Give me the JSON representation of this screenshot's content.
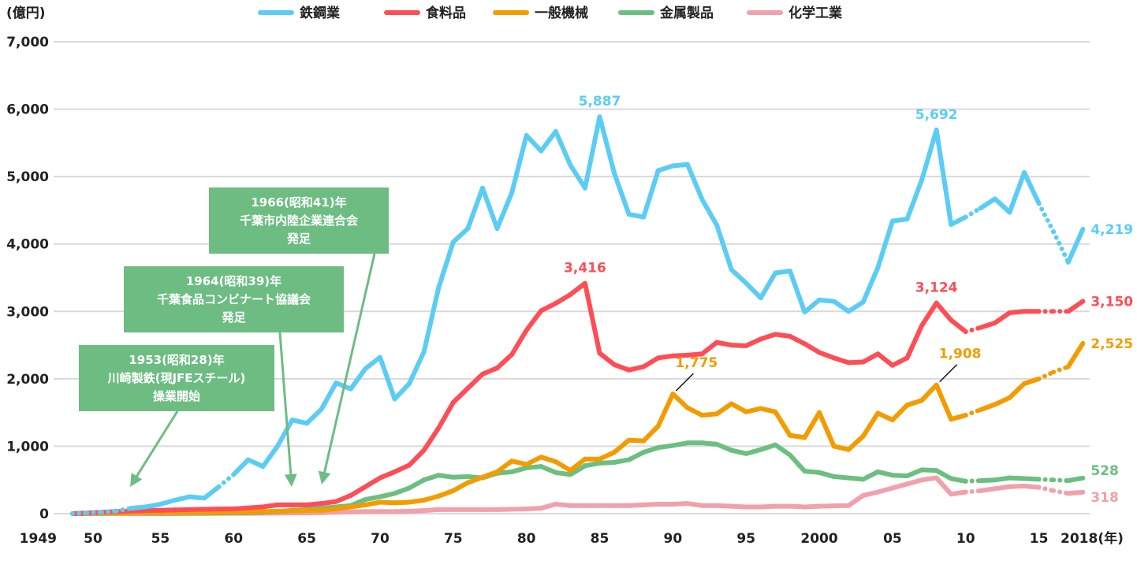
{
  "chart_data": {
    "type": "line",
    "ylabel": "(億円)",
    "xlabel_suffix": "(年)",
    "ylim": [
      0,
      7000
    ],
    "yticks": [
      "0",
      "1,000",
      "2,000",
      "3,000",
      "4,000",
      "5,000",
      "6,000",
      "7,000"
    ],
    "ytick_values": [
      0,
      1000,
      2000,
      3000,
      4000,
      5000,
      6000,
      7000
    ],
    "xlim": [
      1949,
      2018
    ],
    "xticks": [
      {
        "year": 1949,
        "label": "1949"
      },
      {
        "year": 1950,
        "label": "50"
      },
      {
        "year": 1955,
        "label": "55"
      },
      {
        "year": 1960,
        "label": "60"
      },
      {
        "year": 1965,
        "label": "65"
      },
      {
        "year": 1970,
        "label": "70"
      },
      {
        "year": 1975,
        "label": "75"
      },
      {
        "year": 1980,
        "label": "80"
      },
      {
        "year": 1985,
        "label": "85"
      },
      {
        "year": 1990,
        "label": "90"
      },
      {
        "year": 1995,
        "label": "95"
      },
      {
        "year": 2000,
        "label": "2000"
      },
      {
        "year": 2005,
        "label": "05"
      },
      {
        "year": 2010,
        "label": "10"
      },
      {
        "year": 2015,
        "label": "15"
      },
      {
        "year": 2018,
        "label": "2018(年)"
      }
    ],
    "grid": true,
    "legend_position": "top",
    "start_year": 1949,
    "series": [
      {
        "name": "鉄鋼業",
        "color": "#5bcdf5",
        "dotted_from": [
          1949,
          1950,
          1951,
          1952,
          1959,
          2010,
          2015,
          2016
        ],
        "values": [
          0,
          10,
          20,
          40,
          80,
          100,
          140,
          200,
          250,
          230,
          400,
          580,
          800,
          700,
          1000,
          1390,
          1340,
          1550,
          1940,
          1850,
          2150,
          2320,
          1700,
          1930,
          2400,
          3350,
          4030,
          4230,
          4830,
          4230,
          4760,
          5610,
          5380,
          5670,
          5170,
          4830,
          5887,
          5050,
          4440,
          4400,
          5090,
          5160,
          5180,
          4660,
          4280,
          3620,
          3420,
          3200,
          3570,
          3600,
          2990,
          3170,
          3150,
          3000,
          3140,
          3650,
          4340,
          4370,
          4950,
          5692,
          4290,
          4400,
          4530,
          4670,
          4470,
          5060,
          4600,
          4180,
          3730,
          4219
        ]
      },
      {
        "name": "食料品",
        "color": "#ff4d55",
        "dotted_from": [
          2010,
          2015,
          2016
        ],
        "values": [
          0,
          10,
          20,
          30,
          40,
          45,
          50,
          55,
          60,
          65,
          68,
          70,
          85,
          100,
          130,
          130,
          130,
          150,
          180,
          270,
          400,
          530,
          620,
          720,
          940,
          1270,
          1650,
          1860,
          2070,
          2160,
          2360,
          2720,
          3010,
          3120,
          3250,
          3416,
          2380,
          2210,
          2130,
          2180,
          2310,
          2340,
          2350,
          2370,
          2540,
          2500,
          2490,
          2590,
          2660,
          2630,
          2520,
          2390,
          2310,
          2240,
          2250,
          2370,
          2200,
          2310,
          2790,
          3124,
          2870,
          2700,
          2760,
          2830,
          2980,
          3000,
          3000,
          3000,
          3000,
          3150
        ]
      },
      {
        "name": "一般機械",
        "color": "#f39c00",
        "dotted_from": [
          2010,
          2015,
          2016
        ],
        "values": [
          0,
          2,
          4,
          6,
          8,
          10,
          10,
          12,
          14,
          16,
          18,
          20,
          25,
          30,
          35,
          40,
          45,
          50,
          70,
          100,
          130,
          170,
          160,
          170,
          200,
          260,
          340,
          460,
          540,
          620,
          780,
          730,
          840,
          770,
          640,
          810,
          810,
          910,
          1090,
          1080,
          1300,
          1775,
          1570,
          1460,
          1480,
          1630,
          1510,
          1560,
          1510,
          1160,
          1130,
          1500,
          1000,
          950,
          1150,
          1490,
          1390,
          1610,
          1680,
          1908,
          1400,
          1460,
          1540,
          1620,
          1720,
          1930,
          2000,
          2100,
          2180,
          2525
        ]
      },
      {
        "name": "金属製品",
        "color": "#6cbf80",
        "dotted_from": [
          1950,
          1951,
          1952,
          1953,
          2010,
          2015,
          2016
        ],
        "values": [
          0,
          2,
          3,
          4,
          5,
          5,
          5,
          5,
          6,
          7,
          8,
          10,
          15,
          20,
          30,
          50,
          60,
          80,
          100,
          120,
          210,
          250,
          300,
          380,
          500,
          570,
          540,
          550,
          530,
          600,
          620,
          680,
          700,
          610,
          580,
          710,
          750,
          760,
          800,
          910,
          980,
          1010,
          1050,
          1050,
          1030,
          940,
          890,
          950,
          1020,
          870,
          630,
          610,
          550,
          530,
          510,
          620,
          570,
          560,
          650,
          640,
          520,
          480,
          490,
          500,
          530,
          520,
          510,
          500,
          490,
          528
        ]
      },
      {
        "name": "化学工業",
        "color": "#f2a0ab",
        "dotted_from": [
          2010,
          2015,
          2016
        ],
        "values": [
          0,
          1,
          1,
          1,
          2,
          2,
          2,
          2,
          3,
          3,
          4,
          5,
          5,
          6,
          8,
          10,
          10,
          15,
          20,
          25,
          30,
          30,
          30,
          35,
          45,
          60,
          60,
          60,
          60,
          60,
          65,
          70,
          80,
          140,
          120,
          120,
          120,
          120,
          120,
          130,
          140,
          140,
          150,
          120,
          120,
          110,
          100,
          100,
          110,
          110,
          100,
          110,
          115,
          120,
          270,
          320,
          380,
          440,
          500,
          530,
          290,
          320,
          340,
          370,
          400,
          410,
          390,
          340,
          300,
          318
        ]
      }
    ],
    "data_labels": [
      {
        "series": 0,
        "year": 1985,
        "text": "5,887"
      },
      {
        "series": 0,
        "year": 2008,
        "text": "5,692"
      },
      {
        "series": 1,
        "year": 1984,
        "text": "3,416"
      },
      {
        "series": 1,
        "year": 2008,
        "text": "3,124"
      },
      {
        "series": 2,
        "year": 1990,
        "text": "1,775"
      },
      {
        "series": 2,
        "year": 2008,
        "text": "1,908"
      },
      {
        "series": 0,
        "year": 2018,
        "text": "4,219"
      },
      {
        "series": 1,
        "year": 2018,
        "text": "3,150"
      },
      {
        "series": 2,
        "year": 2018,
        "text": "2,525"
      },
      {
        "series": 3,
        "year": 2018,
        "text": "528"
      },
      {
        "series": 4,
        "year": 2018,
        "text": "318"
      }
    ],
    "annotations": [
      {
        "year": 1966,
        "lines": [
          "1966(昭和41)年",
          "千葉市内陸企業連合会",
          "発足"
        ],
        "box_color": "#6dbd83"
      },
      {
        "year": 1964,
        "lines": [
          "1964(昭和39)年",
          "千葉食品コンビナート協議会",
          "発足"
        ],
        "box_color": "#6dbd83"
      },
      {
        "year": 1953,
        "lines": [
          "1953(昭和28)年",
          "川崎製鉄(現JFEスチール)",
          "操業開始"
        ],
        "box_color": "#6dbd83"
      }
    ]
  }
}
